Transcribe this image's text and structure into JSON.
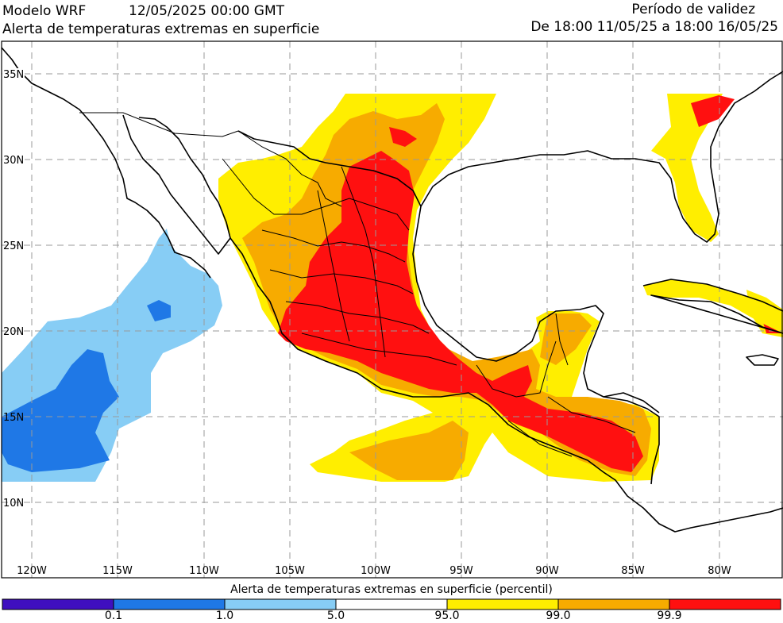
{
  "header": {
    "model": "Modelo WRF",
    "run_time": "12/05/2025 00:00 GMT",
    "subtitle": "Alerta de temperaturas extremas en superficie",
    "validity_label": "Período de validez",
    "validity_range": "De 18:00 11/05/25 a 18:00 16/05/25"
  },
  "axes": {
    "lon_labels": [
      "120W",
      "115W",
      "110W",
      "105W",
      "100W",
      "95W",
      "90W",
      "85W",
      "80W"
    ],
    "lat_labels": [
      "35N",
      "30N",
      "25N",
      "20N",
      "15N",
      "10N"
    ]
  },
  "legend": {
    "title": "Alerta de temperaturas extremas en superficie (percentil)",
    "ticks": [
      "0.1",
      "1.0",
      "5.0",
      "95.0",
      "99.0",
      "99.9"
    ],
    "colors": [
      "#3f0fbf",
      "#1f78e6",
      "#87cdf5",
      "#ffffff",
      "#ffee00",
      "#f7ab00",
      "#ff1010"
    ]
  }
}
